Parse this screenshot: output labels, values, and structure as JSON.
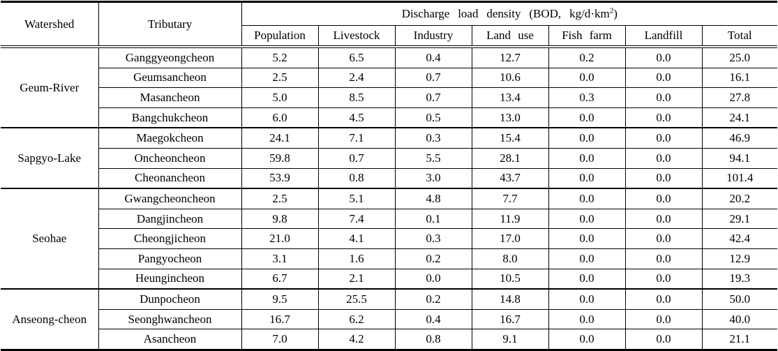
{
  "colors": {
    "background": "#ffffff",
    "text": "#000000",
    "border": "#000000"
  },
  "table": {
    "header": {
      "watershed": "Watershed",
      "tributary": "Tributary",
      "span_title_prefix": "Discharge load density (BOD, kg/d·km",
      "span_title_sup": "2",
      "span_title_suffix": ")",
      "columns": [
        "Population",
        "Livestock",
        "Industry",
        "Land use",
        "Fish farm",
        "Landfill",
        "Total"
      ]
    },
    "groups": [
      {
        "watershed": "Geum-River",
        "rows": [
          {
            "tributary": "Ganggyeongcheon",
            "values": [
              "5.2",
              "6.5",
              "0.4",
              "12.7",
              "0.2",
              "0.0",
              "25.0"
            ]
          },
          {
            "tributary": "Geumsancheon",
            "values": [
              "2.5",
              "2.4",
              "0.7",
              "10.6",
              "0.0",
              "0.0",
              "16.1"
            ]
          },
          {
            "tributary": "Masancheon",
            "values": [
              "5.0",
              "8.5",
              "0.7",
              "13.4",
              "0.3",
              "0.0",
              "27.8"
            ]
          },
          {
            "tributary": "Bangchukcheon",
            "values": [
              "6.0",
              "4.5",
              "0.5",
              "13.0",
              "0.0",
              "0.0",
              "24.1"
            ]
          }
        ]
      },
      {
        "watershed": "Sapgyo-Lake",
        "rows": [
          {
            "tributary": "Maegokcheon",
            "values": [
              "24.1",
              "7.1",
              "0.3",
              "15.4",
              "0.0",
              "0.0",
              "46.9"
            ]
          },
          {
            "tributary": "Oncheoncheon",
            "values": [
              "59.8",
              "0.7",
              "5.5",
              "28.1",
              "0.0",
              "0.0",
              "94.1"
            ]
          },
          {
            "tributary": "Cheonancheon",
            "values": [
              "53.9",
              "0.8",
              "3.0",
              "43.7",
              "0.0",
              "0.0",
              "101.4"
            ]
          }
        ]
      },
      {
        "watershed": "Seohae",
        "rows": [
          {
            "tributary": "Gwangcheoncheon",
            "values": [
              "2.5",
              "5.1",
              "4.8",
              "7.7",
              "0.0",
              "0.0",
              "20.2"
            ]
          },
          {
            "tributary": "Dangjincheon",
            "values": [
              "9.8",
              "7.4",
              "0.1",
              "11.9",
              "0.0",
              "0.0",
              "29.1"
            ]
          },
          {
            "tributary": "Cheongjicheon",
            "values": [
              "21.0",
              "4.1",
              "0.3",
              "17.0",
              "0.0",
              "0.0",
              "42.4"
            ]
          },
          {
            "tributary": "Pangyocheon",
            "values": [
              "3.1",
              "1.6",
              "0.2",
              "8.0",
              "0.0",
              "0.0",
              "12.9"
            ]
          },
          {
            "tributary": "Heungincheon",
            "values": [
              "6.7",
              "2.1",
              "0.0",
              "10.5",
              "0.0",
              "0.0",
              "19.3"
            ]
          }
        ]
      },
      {
        "watershed": "Anseong-cheon",
        "rows": [
          {
            "tributary": "Dunpocheon",
            "values": [
              "9.5",
              "25.5",
              "0.2",
              "14.8",
              "0.0",
              "0.0",
              "50.0"
            ]
          },
          {
            "tributary": "Seonghwancheon",
            "values": [
              "16.7",
              "6.2",
              "0.4",
              "16.7",
              "0.0",
              "0.0",
              "40.0"
            ]
          },
          {
            "tributary": "Asancheon",
            "values": [
              "7.0",
              "4.2",
              "0.8",
              "9.1",
              "0.0",
              "0.0",
              "21.1"
            ]
          }
        ]
      }
    ]
  }
}
